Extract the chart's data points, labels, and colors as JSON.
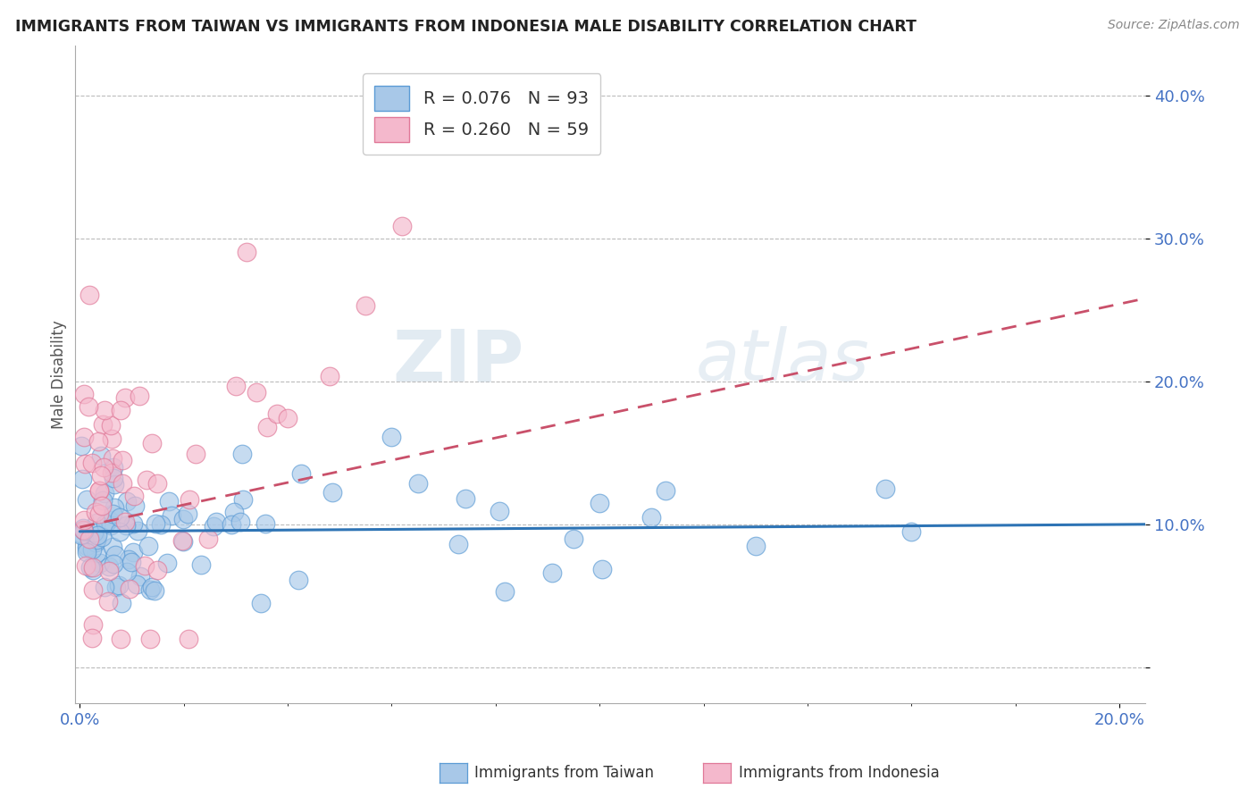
{
  "title": "IMMIGRANTS FROM TAIWAN VS IMMIGRANTS FROM INDONESIA MALE DISABILITY CORRELATION CHART",
  "source_text": "Source: ZipAtlas.com",
  "ylabel": "Male Disability",
  "xlim_min": -0.001,
  "xlim_max": 0.205,
  "ylim_min": -0.025,
  "ylim_max": 0.435,
  "yticks": [
    0.0,
    0.1,
    0.2,
    0.3,
    0.4
  ],
  "ytick_labels": [
    "",
    "10.0%",
    "20.0%",
    "30.0%",
    "40.0%"
  ],
  "xtick_labels_pos": [
    0.0,
    0.2
  ],
  "xtick_labels_text": [
    "0.0%",
    "20.0%"
  ],
  "taiwan_fill": "#A8C8E8",
  "taiwan_edge": "#5B9BD5",
  "indonesia_fill": "#F4B8CC",
  "indonesia_edge": "#E07898",
  "taiwan_R": 0.076,
  "taiwan_N": 93,
  "indonesia_R": 0.26,
  "indonesia_N": 59,
  "taiwan_line_color": "#2E74B5",
  "indonesia_line_color": "#C9506A",
  "background_color": "#FFFFFF",
  "grid_color": "#BBBBBB",
  "watermark_color": "#C5D8E8",
  "legend_label_taiwan": "Immigrants from Taiwan",
  "legend_label_indonesia": "Immigrants from Indonesia",
  "tick_color": "#4472C4",
  "taiwan_line_y0": 0.095,
  "taiwan_line_y1": 0.1,
  "indonesia_line_y0": 0.098,
  "indonesia_line_y1": 0.258
}
